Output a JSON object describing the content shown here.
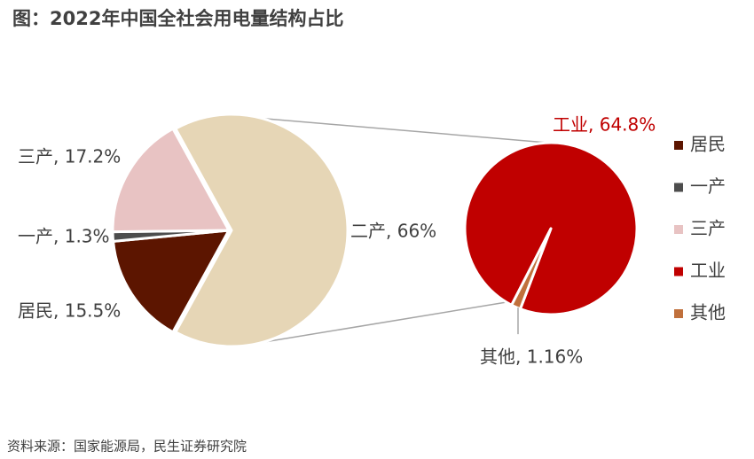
{
  "chart_data": {
    "type": "pie_of_pie",
    "title": "图：2022年中国全社会用电量结构占比",
    "source": "资料来源：国家能源局，民生证券研究院",
    "main": {
      "categories": [
        "居民",
        "一产",
        "三产",
        "二产"
      ],
      "values": [
        15.5,
        1.3,
        17.2,
        66
      ],
      "value_labels": [
        "居民, 15.5%",
        "一产, 1.3%",
        "三产, 17.2%",
        "二产, 66%"
      ],
      "colors": [
        "#5c1500",
        "#4d4d4d",
        "#e8c3c3",
        "#e6d6b6"
      ]
    },
    "detail": {
      "categories": [
        "工业",
        "其他"
      ],
      "values": [
        64.8,
        1.16
      ],
      "value_labels": [
        "工业, 64.8%",
        "其他, 1.16%"
      ],
      "colors": [
        "#c00000",
        "#c0703c"
      ]
    },
    "legend": "right"
  }
}
